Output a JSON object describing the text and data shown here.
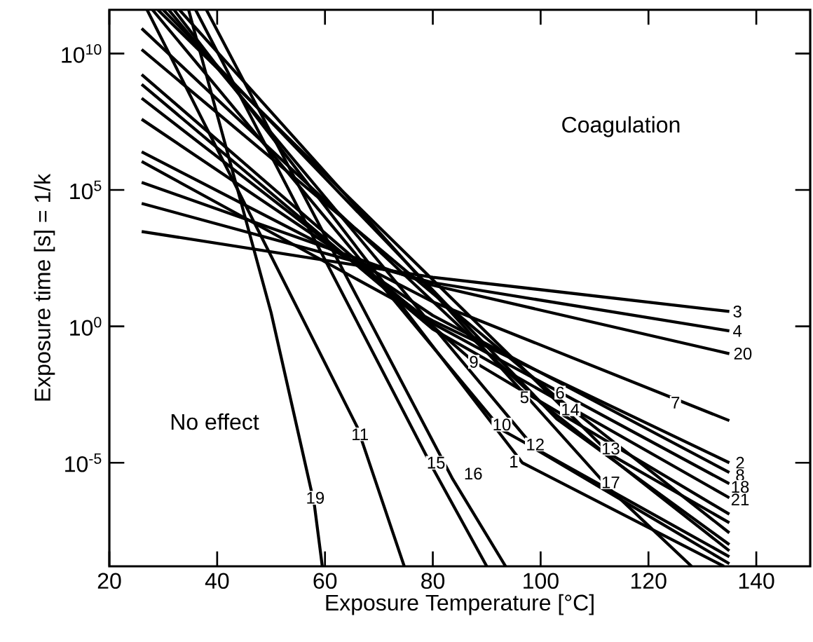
{
  "chart_data": {
    "type": "line",
    "xlabel": "Exposure Temperature [°C]",
    "ylabel": "Exposure time [s] = 1/k",
    "log": "y",
    "xlim": [
      20,
      150
    ],
    "ylim": [
      1.6e-09,
      400000000000.0
    ],
    "xticks": [
      20,
      40,
      60,
      80,
      100,
      120,
      140
    ],
    "yticks": [
      {
        "value": 1e-05,
        "label": "10$^{-5}$"
      },
      {
        "value": 1,
        "label": "10$^{0}$"
      },
      {
        "value": 100000,
        "label": "10$^{5}$"
      },
      {
        "value": 10000000000,
        "label": "10$^{10}$"
      }
    ],
    "series": [
      {
        "color": "#000000",
        "x": [
          32,
          96.6,
          134
        ],
        "values": [
          400000000000.0,
          1e-05,
          1.6e-09
        ]
      },
      {
        "color": "#000000",
        "x": [
          26,
          80,
          135
        ],
        "values": [
          1100000.0,
          1.6,
          1e-05
        ]
      },
      {
        "color": "#000000",
        "x": [
          26,
          80,
          135
        ],
        "values": [
          3000,
          63,
          3.5
        ]
      },
      {
        "color": "#000000",
        "x": [
          26,
          80,
          135
        ],
        "values": [
          32000,
          40,
          0.68
        ]
      },
      {
        "color": "#000000",
        "x": [
          26,
          100,
          135
        ],
        "values": [
          83000000000.0,
          0.0016,
          5.9e-09
        ]
      },
      {
        "color": "#000000",
        "x": [
          26,
          103,
          135
        ],
        "values": [
          14000000000.0,
          0.0025,
          2.7e-08
        ]
      },
      {
        "color": "#000000",
        "x": [
          26,
          80,
          135
        ],
        "values": [
          2500000.0,
          7.9,
          0.00035
        ]
      },
      {
        "color": "#000000",
        "x": [
          26,
          80,
          135
        ],
        "values": [
          39000000.0,
          2.5,
          4.4e-06
        ]
      },
      {
        "color": "#000000",
        "x": [
          26,
          87.6,
          135
        ],
        "values": [
          1700000000.0,
          0.05,
          1.3e-07
        ]
      },
      {
        "color": "#000000",
        "x": [
          28,
          92.8,
          135
        ],
        "values": [
          400000000000.0,
          0.00016,
          3.6e-09
        ]
      },
      {
        "color": "#000000",
        "x": [
          27,
          66,
          74.7
        ],
        "values": [
          400000000000.0,
          0.0002,
          1.6e-09
        ]
      },
      {
        "color": "#000000",
        "x": [
          31,
          99,
          135
        ],
        "values": [
          400000000000.0,
          3.2e-05,
          2e-09
        ]
      },
      {
        "color": "#000000",
        "x": [
          29,
          113,
          135
        ],
        "values": [
          400000000000.0,
          2e-05,
          6.3e-08
        ]
      },
      {
        "color": "#000000",
        "x": [
          30,
          103,
          135
        ],
        "values": [
          400000000000.0,
          0.0004,
          1e-08
        ]
      },
      {
        "color": "#000000",
        "x": [
          36,
          80,
          90
        ],
        "values": [
          400000000000.0,
          6.3e-06,
          1.6e-09
        ]
      },
      {
        "color": "#000000",
        "x": [
          38,
          83.7,
          93.5
        ],
        "values": [
          400000000000.0,
          2.5e-06,
          1.6e-09
        ]
      },
      {
        "color": "#000000",
        "x": [
          33,
          113,
          128
        ],
        "values": [
          400000000000.0,
          1e-06,
          1.6e-09
        ]
      },
      {
        "color": "#000000",
        "x": [
          26,
          80,
          135
        ],
        "values": [
          230000000.0,
          1.26,
          1.7e-06
        ]
      },
      {
        "color": "#000000",
        "x": [
          34.7,
          50,
          58,
          59.5
        ],
        "values": [
          400000000000.0,
          3.2,
          3.2e-07,
          1.6e-09
        ]
      },
      {
        "color": "#000000",
        "x": [
          26,
          80,
          135
        ],
        "values": [
          190000,
          32,
          0.1
        ]
      },
      {
        "color": "#000000",
        "x": [
          26,
          80,
          135
        ],
        "values": [
          740000000.0,
          0.79,
          5.2e-07
        ]
      }
    ],
    "annotations": [
      "Coagulation",
      "No effect",
      {
        "text": "1",
        "x": 95,
        "y": 1.1e-05
      },
      {
        "text": "2",
        "x": 137,
        "y": 1e-05
      },
      {
        "text": "3",
        "x": 136.5,
        "y": 3.5
      },
      {
        "text": "4",
        "x": 136.5,
        "y": 0.68
      },
      {
        "text": "5",
        "x": 97,
        "y": 0.0025
      },
      {
        "text": "6",
        "x": 103.6,
        "y": 0.0037
      },
      {
        "text": "7",
        "x": 125,
        "y": 0.0016
      },
      {
        "text": "8",
        "x": 137,
        "y": 3.5e-06
      },
      {
        "text": "9",
        "x": 87.6,
        "y": 0.05
      },
      {
        "text": "10",
        "x": 92.8,
        "y": 0.00025
      },
      {
        "text": "11",
        "x": 66.5,
        "y": 0.00011
      },
      {
        "text": "12",
        "x": 99,
        "y": 4.7e-05
      },
      {
        "text": "13",
        "x": 113,
        "y": 3.3e-05
      },
      {
        "text": "14",
        "x": 105.5,
        "y": 0.0009
      },
      {
        "text": "15",
        "x": 80.6,
        "y": 1e-05
      },
      {
        "text": "16",
        "x": 87.5,
        "y": 4e-06
      },
      {
        "text": "17",
        "x": 113,
        "y": 1.9e-06
      },
      {
        "text": "18",
        "x": 137,
        "y": 1.3e-06
      },
      {
        "text": "19",
        "x": 58.2,
        "y": 5.2e-07
      },
      {
        "text": "20",
        "x": 137.5,
        "y": 0.1
      },
      {
        "text": "21",
        "x": 137,
        "y": 4.5e-07
      }
    ]
  }
}
